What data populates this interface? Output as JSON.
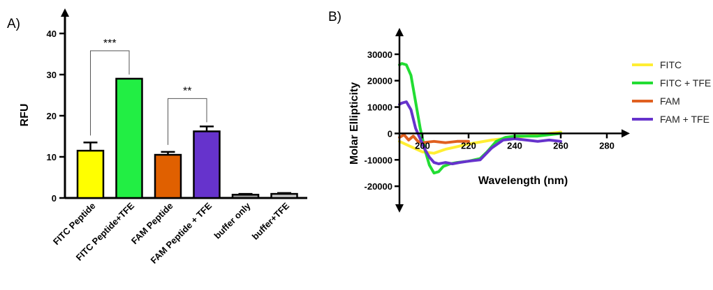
{
  "panels": {
    "a": "A)",
    "b": "B)"
  },
  "chart_data": [
    {
      "type": "bar",
      "ylabel": "RFU",
      "ylim": [
        0,
        40
      ],
      "yticks": [
        0,
        10,
        20,
        30,
        40
      ],
      "categories": [
        "FITC Peptide",
        "FITC Peptide+TFE",
        "FAM Peptide",
        "FAM Peptide + TFE",
        "buffer only",
        "buffer+TFE"
      ],
      "values": [
        11.5,
        29,
        10.5,
        16.2,
        0.8,
        1.0
      ],
      "errors": [
        2.0,
        0,
        0.7,
        1.2,
        0.2,
        0.2
      ],
      "colors": [
        "#ffff00",
        "#22ee44",
        "#e06000",
        "#6633cc",
        "#9a9a9a",
        "#c8c8c8"
      ],
      "significance": [
        {
          "from": 0,
          "to": 1,
          "label": "***"
        },
        {
          "from": 2,
          "to": 3,
          "label": "**"
        }
      ]
    },
    {
      "type": "line",
      "xlabel": "Wavelength (nm)",
      "ylabel": "Molar Ellipticity",
      "xlim": [
        190,
        290
      ],
      "ylim": [
        -30000,
        40000
      ],
      "xticks": [
        200,
        220,
        240,
        260,
        280
      ],
      "xtick_labels": [
        "200",
        "220",
        "240",
        "260",
        "280"
      ],
      "yticks": [
        -20000,
        -10000,
        0,
        10000,
        20000,
        30000
      ],
      "legend_position": "right",
      "series": [
        {
          "name": "FITC",
          "color": "#ffee33",
          "x": [
            190,
            195,
            200,
            205,
            210,
            215,
            220,
            230,
            240,
            250,
            260
          ],
          "y": [
            -3000,
            -5000,
            -7000,
            -7500,
            -6000,
            -5000,
            -4000,
            -2500,
            -1500,
            -500,
            500
          ]
        },
        {
          "name": "FITC + TFE",
          "color": "#22dd33",
          "x": [
            190,
            191,
            193,
            195,
            197,
            199,
            201,
            203,
            205,
            207,
            209,
            212,
            215,
            220,
            225,
            228,
            232,
            236,
            240,
            245,
            250,
            255,
            260
          ],
          "y": [
            26000,
            26500,
            26000,
            22000,
            12000,
            2000,
            -6000,
            -12000,
            -15000,
            -14500,
            -12500,
            -11500,
            -11000,
            -10500,
            -9500,
            -7000,
            -3000,
            -1500,
            -1000,
            -1000,
            -1000,
            -500,
            0
          ]
        },
        {
          "name": "FAM",
          "color": "#e06020",
          "x": [
            190,
            192,
            194,
            196,
            198,
            200,
            205,
            210,
            215,
            220
          ],
          "y": [
            -1500,
            -500,
            -2500,
            -1000,
            -3000,
            -3500,
            -3000,
            -3500,
            -3000,
            -3000
          ]
        },
        {
          "name": "FAM + TFE",
          "color": "#6633cc",
          "x": [
            190,
            191,
            193,
            195,
            197,
            199,
            201,
            203,
            205,
            207,
            210,
            213,
            216,
            220,
            225,
            230,
            235,
            240,
            245,
            250,
            255,
            260
          ],
          "y": [
            11000,
            11500,
            12000,
            9000,
            2000,
            -2000,
            -6000,
            -9000,
            -11000,
            -11500,
            -11000,
            -11500,
            -11000,
            -10500,
            -10000,
            -5500,
            -2500,
            -2000,
            -2500,
            -3000,
            -2500,
            -3000
          ]
        }
      ]
    }
  ]
}
